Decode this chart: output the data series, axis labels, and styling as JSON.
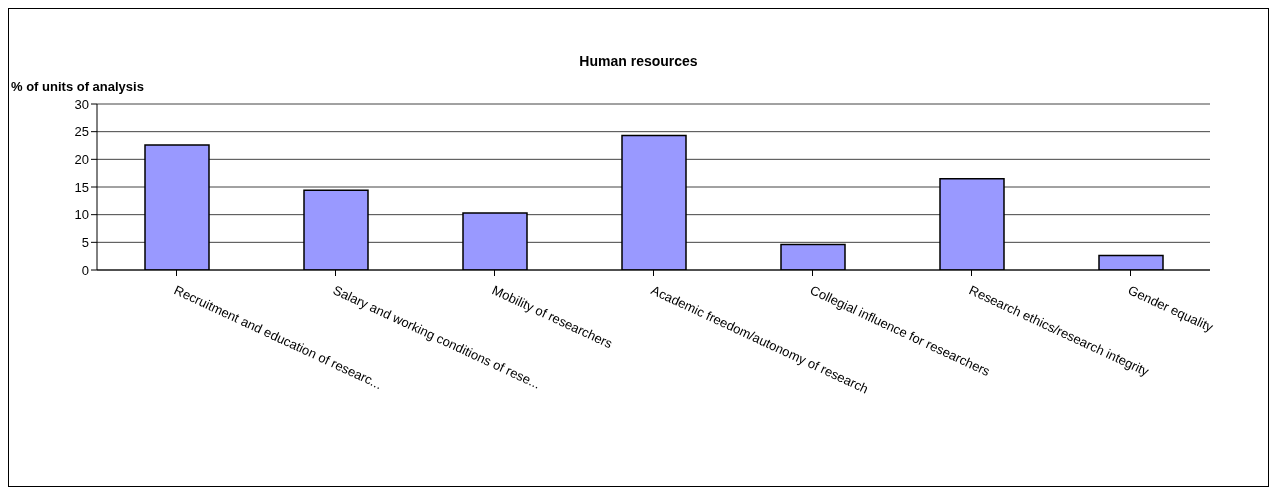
{
  "chart_data": {
    "type": "bar",
    "title": "Human resources",
    "ylabel": "% of units of analysis",
    "categories": [
      "Recruitment and education of researc...",
      "Salary and working conditions of rese...",
      "Mobility of researchers",
      "Academic freedom/autonomy of research",
      "Collegial influence for researchers",
      "Research ethics/research integrity",
      "Gender equality"
    ],
    "values": [
      22.6,
      14.4,
      10.3,
      24.3,
      4.6,
      16.5,
      2.6
    ],
    "color": "#9999ff",
    "ylim": [
      0,
      30
    ],
    "yticks": [
      0,
      5,
      10,
      15,
      20,
      25,
      30
    ],
    "grid": "y"
  }
}
